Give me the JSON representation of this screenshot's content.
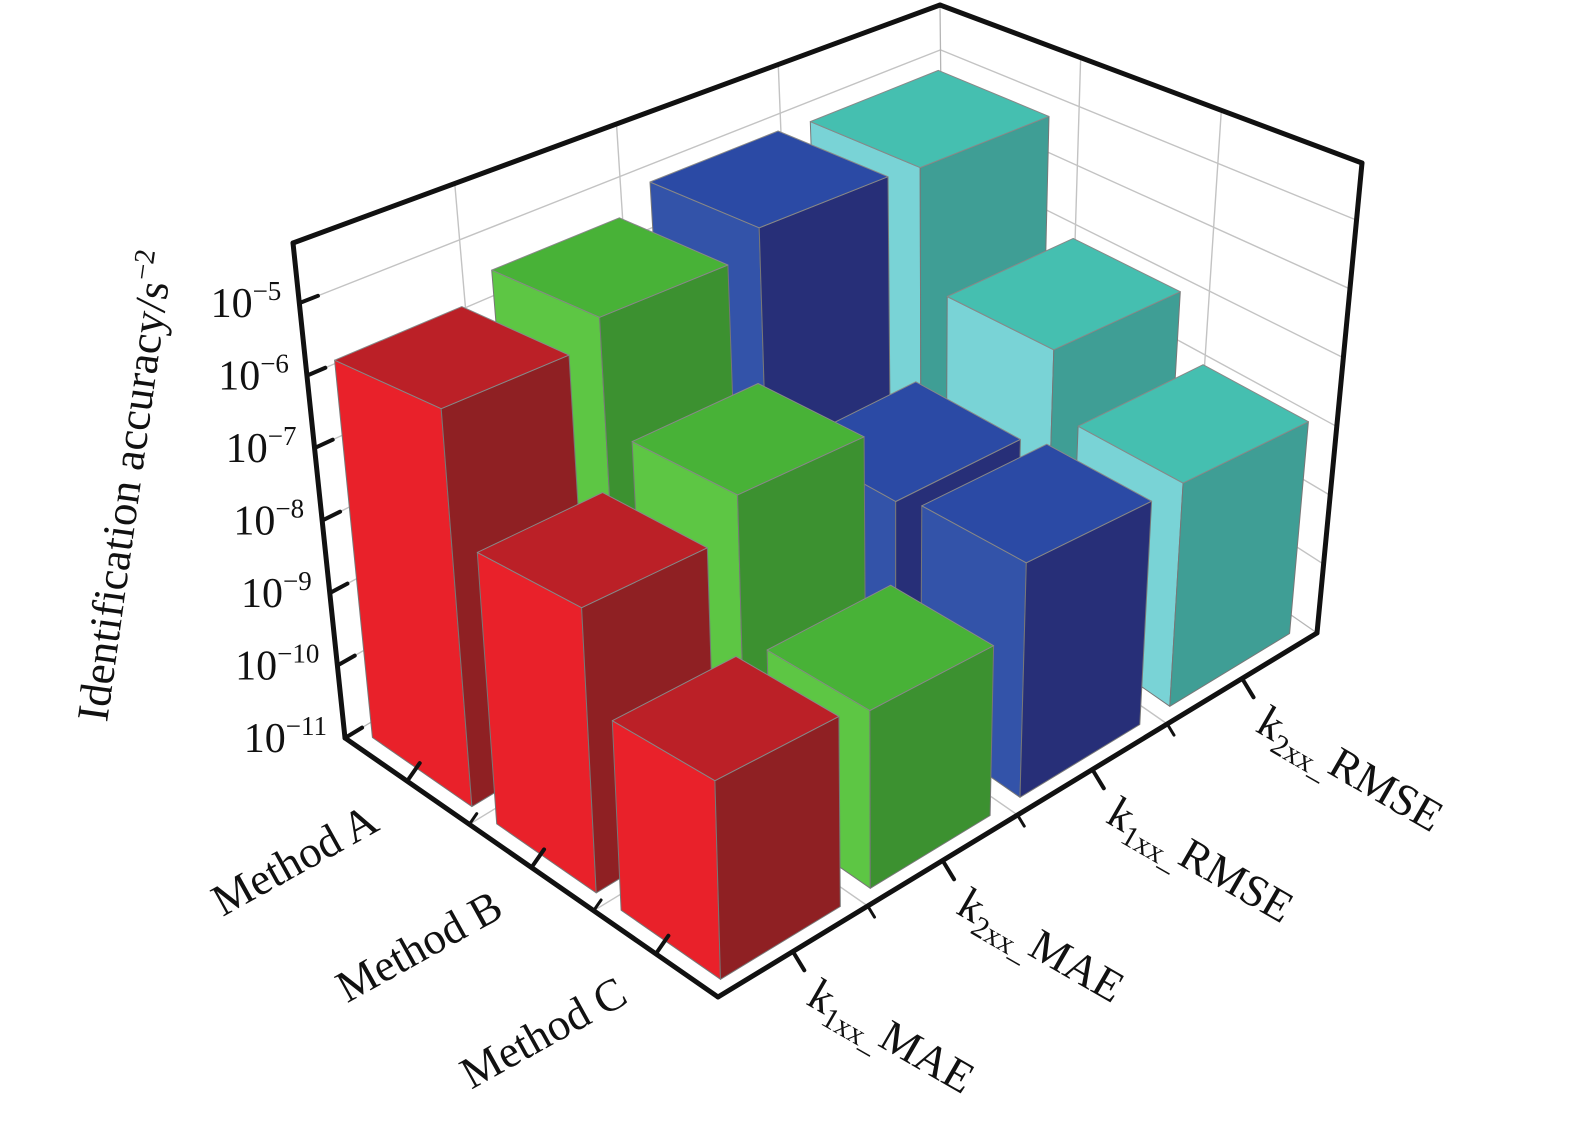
{
  "chart_data": {
    "type": "bar",
    "projection": "3d",
    "title": "",
    "zlabel": {
      "text": "Identification accuracy/s",
      "sup": "−2",
      "full": "Identification accuracy/s^-2"
    },
    "z_scale": "log",
    "zlim": [
      1e-11,
      6.8e-05
    ],
    "z_ticks": [
      {
        "base": "10",
        "exp": "−5",
        "value": 1e-05
      },
      {
        "base": "10",
        "exp": "−6",
        "value": 1e-06
      },
      {
        "base": "10",
        "exp": "−7",
        "value": 1e-07
      },
      {
        "base": "10",
        "exp": "−8",
        "value": 1e-08
      },
      {
        "base": "10",
        "exp": "−9",
        "value": 1e-09
      },
      {
        "base": "10",
        "exp": "−10",
        "value": 1e-10
      },
      {
        "base": "10",
        "exp": "−11",
        "value": 1e-11
      }
    ],
    "categories": [
      "Method A",
      "Method B",
      "Method C"
    ],
    "series": [
      {
        "label": "k1xx_MAE",
        "pre": "k",
        "sub": "1xx_",
        "post": "MAE",
        "colors": {
          "light": "#e9212a",
          "dark": "#8f2023",
          "top": "#bb2027"
        },
        "values": [
          1.6e-06,
          3.2e-08,
          2e-09
        ]
      },
      {
        "label": "k2xx_MAE",
        "pre": "k",
        "sub": "2xx_",
        "post": "MAE",
        "colors": {
          "light": "#5dc644",
          "dark": "#3c9130",
          "top": "#48b237"
        },
        "values": [
          3.5e-06,
          1e-07,
          1.5e-09
        ]
      },
      {
        "label": "k1xx_RMSE",
        "pre": "k",
        "sub": "1xx_",
        "post": "RMSE",
        "colors": {
          "light": "#3353a9",
          "dark": "#272f78",
          "top": "#2b4aa5"
        },
        "values": [
          8e-06,
          8e-09,
          1.1e-08
        ]
      },
      {
        "label": "k2xx_RMSE",
        "pre": "k",
        "sub": "2xx_",
        "post": "RMSE",
        "colors": {
          "light": "#79d3d6",
          "dark": "#3f9e95",
          "top": "#45bfb0"
        },
        "values": [
          7e-06,
          1e-07,
          1.2e-08
        ]
      }
    ],
    "legend_position": "none",
    "grid": true,
    "grid_color": "#c3c3c3",
    "frame_color": "#111111",
    "wall_color": "#ffffff"
  }
}
